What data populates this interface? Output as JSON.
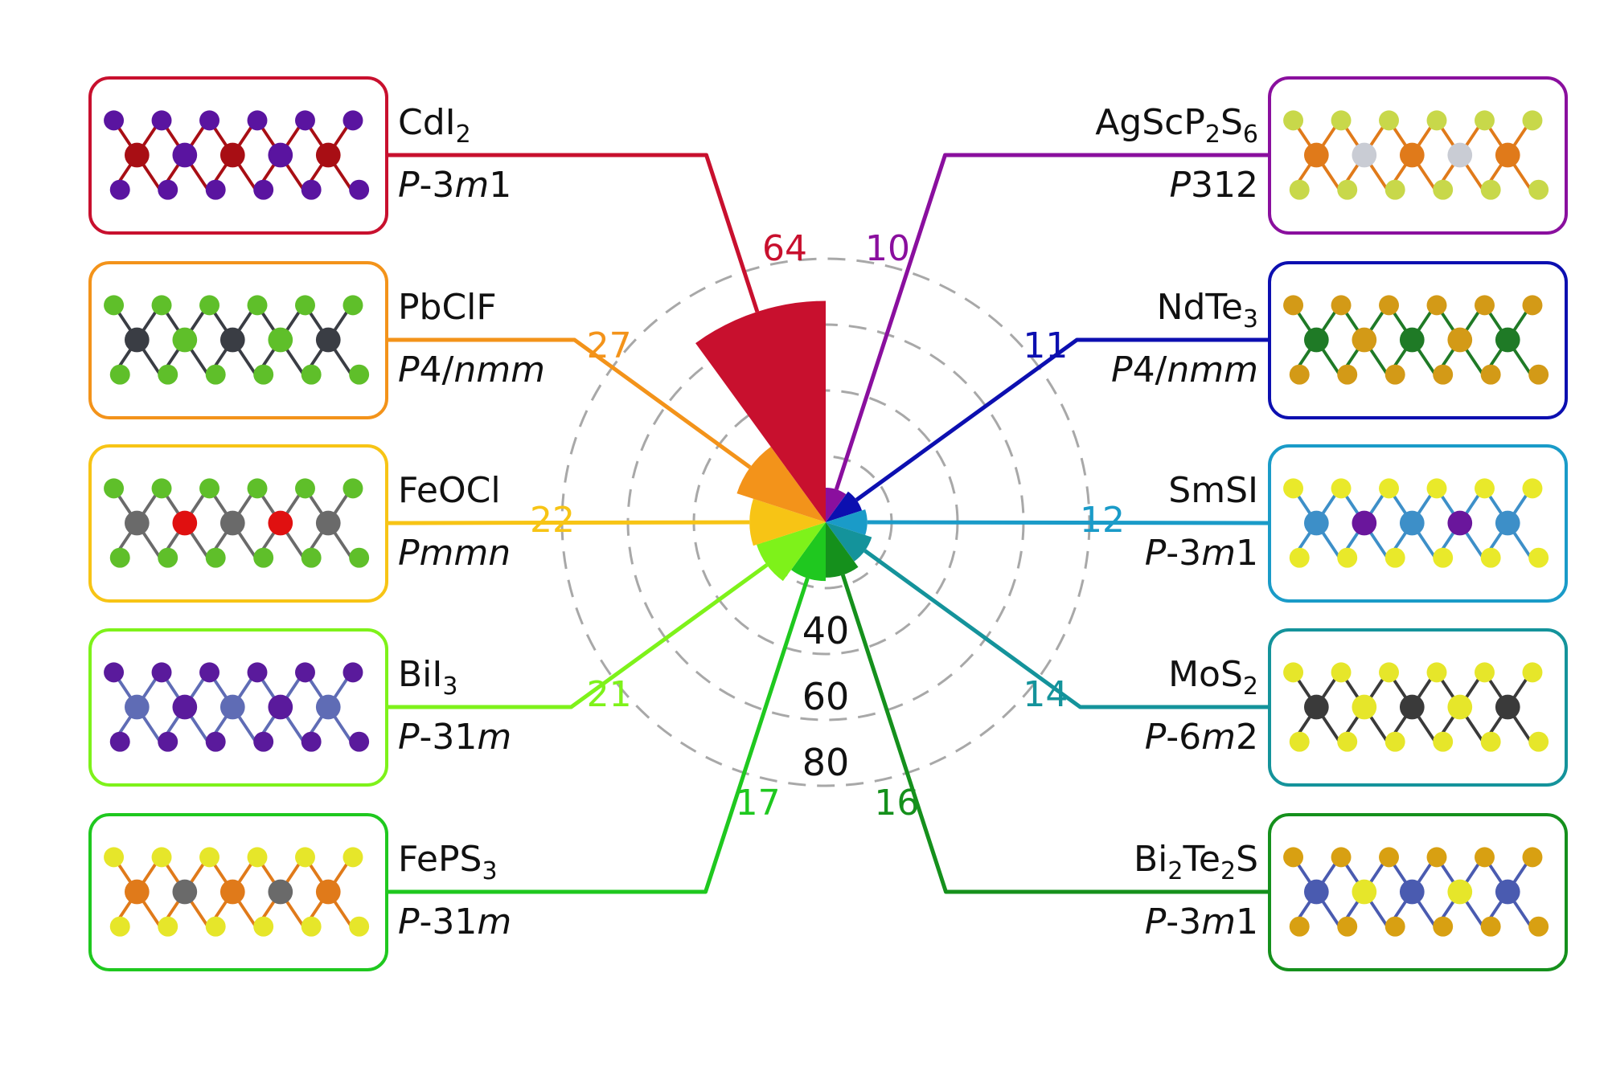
{
  "figure": {
    "ring_labels": [
      "40",
      "60",
      "80"
    ],
    "ring_color": "#a8a8a8"
  },
  "materials": [
    {
      "id": "agscp2s6",
      "formula": "AgScP",
      "parts": [
        [
          "AgScP",
          ""
        ],
        [
          "2",
          "sub"
        ],
        [
          "S",
          ""
        ],
        [
          "6",
          "sub"
        ]
      ],
      "space_group": [
        [
          "P",
          "it"
        ],
        [
          "312",
          ""
        ]
      ],
      "count": 10,
      "color": "#8a0f9e",
      "side": "right",
      "slot": 0,
      "atoms": [
        "#c8d84a",
        "#e07a1a",
        "#c9ccd4"
      ]
    },
    {
      "id": "ndte3",
      "parts": [
        [
          "NdTe",
          ""
        ],
        [
          "3",
          "sub"
        ]
      ],
      "space_group": [
        [
          "P",
          "it"
        ],
        [
          "4/",
          ""
        ],
        [
          "nmm",
          "it"
        ]
      ],
      "count": 11,
      "color": "#0c0fb0",
      "side": "right",
      "slot": 1,
      "atoms": [
        "#d39a17",
        "#1f7a26"
      ]
    },
    {
      "id": "smsi",
      "parts": [
        [
          "SmSI",
          ""
        ]
      ],
      "space_group": [
        [
          "P",
          "it"
        ],
        [
          "-3",
          ""
        ],
        [
          "m",
          "it"
        ],
        [
          "1",
          ""
        ]
      ],
      "count": 12,
      "color": "#1a9bc8",
      "side": "right",
      "slot": 2,
      "atoms": [
        "#e9e92a",
        "#3d8fc8",
        "#6a169c"
      ]
    },
    {
      "id": "mos2",
      "parts": [
        [
          "MoS",
          ""
        ],
        [
          "2",
          "sub"
        ]
      ],
      "space_group": [
        [
          "P",
          "it"
        ],
        [
          "-6",
          ""
        ],
        [
          "m",
          "it"
        ],
        [
          "2",
          ""
        ]
      ],
      "count": 14,
      "color": "#14939b",
      "side": "right",
      "slot": 3,
      "atoms": [
        "#e6e62a",
        "#3a3a3a"
      ]
    },
    {
      "id": "bi2te2s",
      "parts": [
        [
          "Bi",
          ""
        ],
        [
          "2",
          "sub"
        ],
        [
          "Te",
          ""
        ],
        [
          "2",
          "sub"
        ],
        [
          "S",
          ""
        ]
      ],
      "space_group": [
        [
          "P",
          "it"
        ],
        [
          "-3",
          ""
        ],
        [
          "m",
          "it"
        ],
        [
          "1",
          ""
        ]
      ],
      "count": 16,
      "color": "#15901c",
      "side": "right",
      "slot": 4,
      "atoms": [
        "#d8a012",
        "#4a5bb0",
        "#e6e62a"
      ]
    },
    {
      "id": "feps3",
      "parts": [
        [
          "FePS",
          ""
        ],
        [
          "3",
          "sub"
        ]
      ],
      "space_group": [
        [
          "P",
          "it"
        ],
        [
          "-31",
          ""
        ],
        [
          "m",
          "it"
        ]
      ],
      "count": 17,
      "color": "#1fc81f",
      "side": "left",
      "slot": 4,
      "atoms": [
        "#e6e62a",
        "#e07a1a",
        "#6a6a6a"
      ]
    },
    {
      "id": "bii3",
      "parts": [
        [
          "BiI",
          ""
        ],
        [
          "3",
          "sub"
        ]
      ],
      "space_group": [
        [
          "P",
          "it"
        ],
        [
          "-31",
          ""
        ],
        [
          "m",
          "it"
        ]
      ],
      "count": 21,
      "color": "#7ef21a",
      "side": "left",
      "slot": 3,
      "atoms": [
        "#5a1a9c",
        "#5f6cb5"
      ]
    },
    {
      "id": "feocl",
      "parts": [
        [
          "FeOCl",
          ""
        ]
      ],
      "space_group": [
        [
          "Pmmn",
          "it"
        ]
      ],
      "count": 22,
      "color": "#f7c415",
      "side": "left",
      "slot": 2,
      "atoms": [
        "#5fbf2a",
        "#6a6a6a",
        "#e01010"
      ]
    },
    {
      "id": "pbclf",
      "parts": [
        [
          "PbClF",
          ""
        ]
      ],
      "space_group": [
        [
          "P",
          "it"
        ],
        [
          "4/",
          ""
        ],
        [
          "nmm",
          "it"
        ]
      ],
      "count": 27,
      "color": "#f3931a",
      "side": "left",
      "slot": 1,
      "atoms": [
        "#5fbf2a",
        "#3a3d44"
      ]
    },
    {
      "id": "cdi2",
      "parts": [
        [
          "CdI",
          ""
        ],
        [
          "2",
          "sub"
        ]
      ],
      "space_group": [
        [
          "P",
          "it"
        ],
        [
          "-3",
          ""
        ],
        [
          "m",
          "it"
        ],
        [
          "1",
          ""
        ]
      ],
      "count": 64,
      "color": "#c8102e",
      "side": "left",
      "slot": 0,
      "atoms": [
        "#5a14a0",
        "#a80e14"
      ]
    }
  ],
  "chart_data": {
    "type": "bar",
    "subtype": "polar-bar (rose)",
    "title": "",
    "categories": [
      "AgScP2S6 (P312)",
      "NdTe3 (P4/nmm)",
      "SmSI (P-3m1)",
      "MoS2 (P-6m2)",
      "Bi2Te2S (P-3m1)",
      "FePS3 (P-31m)",
      "BiI3 (P-31m)",
      "FeOCl (Pmmn)",
      "PbClF (P4/nmm)",
      "CdI2 (P-3m1)"
    ],
    "values": [
      10,
      11,
      12,
      14,
      16,
      17,
      21,
      22,
      27,
      64
    ],
    "colors": [
      "#8a0f9e",
      "#0c0fb0",
      "#1a9bc8",
      "#14939b",
      "#15901c",
      "#1fc81f",
      "#7ef21a",
      "#f7c415",
      "#f3931a",
      "#c8102e"
    ],
    "angular_order": "clockwise from north, 36 degrees per sector",
    "radial_ticks": [
      20,
      40,
      60,
      80
    ],
    "radial_tick_labels": [
      "40",
      "60",
      "80"
    ],
    "rlim": [
      0,
      80
    ],
    "grid": "dashed concentric circles",
    "xlabel": "",
    "ylabel": ""
  }
}
